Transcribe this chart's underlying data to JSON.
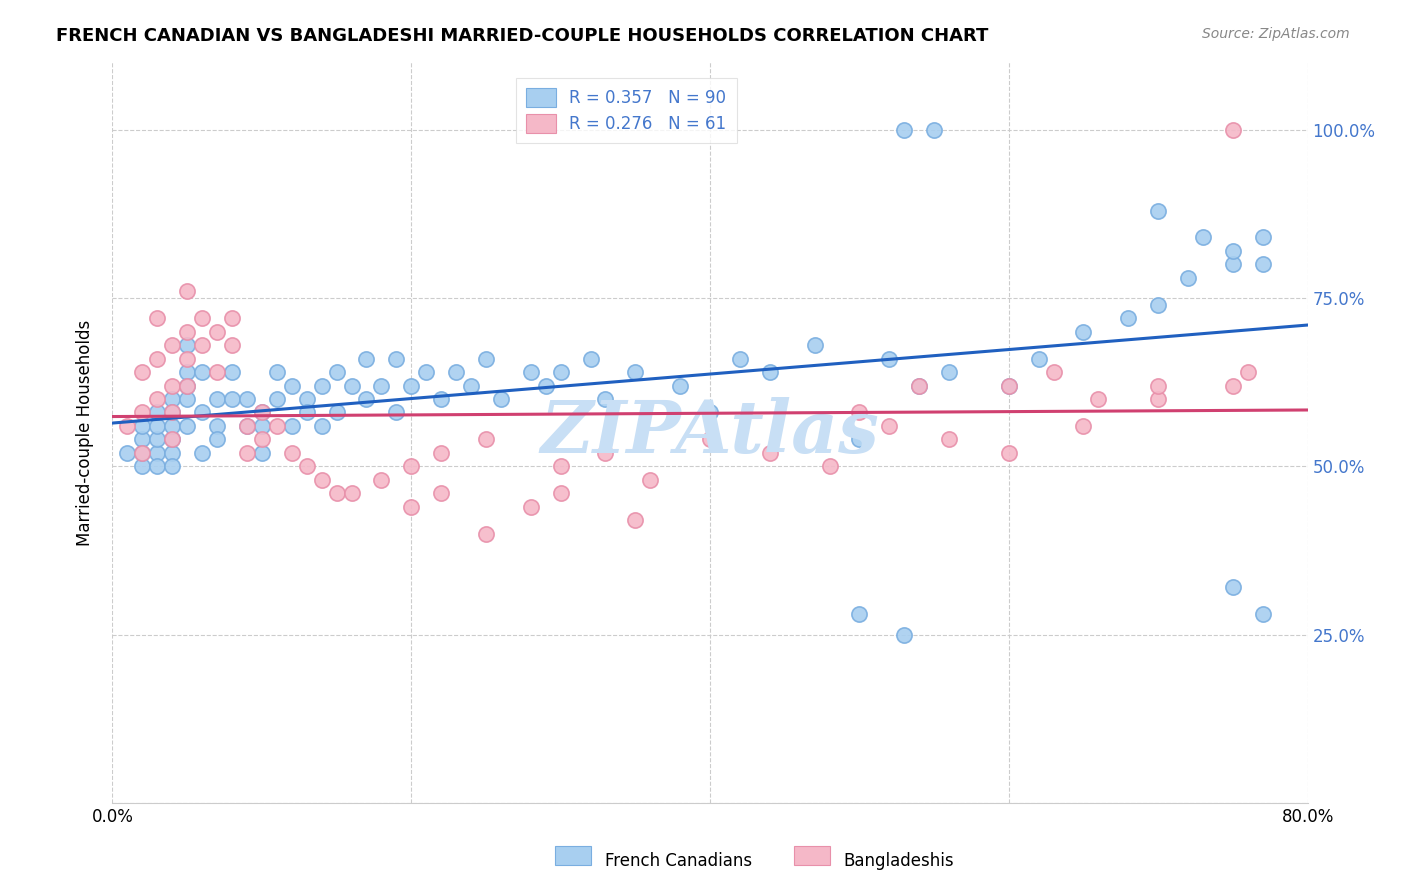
{
  "title": "FRENCH CANADIAN VS BANGLADESHI MARRIED-COUPLE HOUSEHOLDS CORRELATION CHART",
  "source": "Source: ZipAtlas.com",
  "ylabel": "Married-couple Households",
  "xlabel_french": "French Canadians",
  "xlabel_bangladeshi": "Bangladeshis",
  "xmin": 0.0,
  "xmax": 0.8,
  "ymin": 0.0,
  "ymax": 1.1,
  "yticks": [
    0.0,
    0.25,
    0.5,
    0.75,
    1.0
  ],
  "xticks": [
    0.0,
    0.2,
    0.4,
    0.6,
    0.8
  ],
  "french_R": 0.357,
  "french_N": 90,
  "bangladeshi_R": 0.276,
  "bangladeshi_N": 61,
  "french_color": "#a8cff0",
  "bangladeshi_color": "#f5b8c8",
  "french_edge_color": "#7aaee0",
  "bangladeshi_edge_color": "#e890aa",
  "french_line_color": "#2060c0",
  "bangladeshi_line_color": "#d04070",
  "watermark_color": "#c8dff5",
  "right_tick_color": "#4477cc",
  "title_fontsize": 13,
  "source_fontsize": 10,
  "axis_fontsize": 12,
  "legend_fontsize": 12,
  "french_x": [
    0.01,
    0.02,
    0.02,
    0.02,
    0.02,
    0.03,
    0.03,
    0.03,
    0.03,
    0.03,
    0.04,
    0.04,
    0.04,
    0.04,
    0.04,
    0.04,
    0.05,
    0.05,
    0.05,
    0.05,
    0.05,
    0.06,
    0.06,
    0.06,
    0.07,
    0.07,
    0.07,
    0.08,
    0.08,
    0.09,
    0.09,
    0.1,
    0.1,
    0.1,
    0.11,
    0.11,
    0.12,
    0.12,
    0.13,
    0.13,
    0.14,
    0.14,
    0.15,
    0.15,
    0.16,
    0.17,
    0.17,
    0.18,
    0.19,
    0.19,
    0.2,
    0.21,
    0.22,
    0.23,
    0.24,
    0.25,
    0.26,
    0.28,
    0.29,
    0.3,
    0.32,
    0.33,
    0.35,
    0.38,
    0.4,
    0.42,
    0.44,
    0.47,
    0.5,
    0.52,
    0.54,
    0.56,
    0.6,
    0.62,
    0.65,
    0.68,
    0.7,
    0.72,
    0.75,
    0.77,
    0.53,
    0.55,
    0.7,
    0.73,
    0.75,
    0.77,
    0.5,
    0.53,
    0.75,
    0.77
  ],
  "french_y": [
    0.52,
    0.5,
    0.54,
    0.52,
    0.56,
    0.52,
    0.54,
    0.5,
    0.56,
    0.58,
    0.52,
    0.54,
    0.5,
    0.56,
    0.6,
    0.58,
    0.56,
    0.6,
    0.64,
    0.68,
    0.62,
    0.64,
    0.52,
    0.58,
    0.56,
    0.6,
    0.54,
    0.6,
    0.64,
    0.56,
    0.6,
    0.58,
    0.52,
    0.56,
    0.64,
    0.6,
    0.62,
    0.56,
    0.6,
    0.58,
    0.62,
    0.56,
    0.64,
    0.58,
    0.62,
    0.6,
    0.66,
    0.62,
    0.58,
    0.66,
    0.62,
    0.64,
    0.6,
    0.64,
    0.62,
    0.66,
    0.6,
    0.64,
    0.62,
    0.64,
    0.66,
    0.6,
    0.64,
    0.62,
    0.58,
    0.66,
    0.64,
    0.68,
    0.54,
    0.66,
    0.62,
    0.64,
    0.62,
    0.66,
    0.7,
    0.72,
    0.74,
    0.78,
    0.8,
    0.84,
    1.0,
    1.0,
    0.88,
    0.84,
    0.82,
    0.8,
    0.28,
    0.25,
    0.32,
    0.28
  ],
  "bangladeshi_x": [
    0.01,
    0.02,
    0.02,
    0.02,
    0.03,
    0.03,
    0.03,
    0.04,
    0.04,
    0.04,
    0.04,
    0.05,
    0.05,
    0.05,
    0.05,
    0.06,
    0.06,
    0.07,
    0.07,
    0.08,
    0.08,
    0.09,
    0.09,
    0.1,
    0.1,
    0.11,
    0.12,
    0.13,
    0.14,
    0.15,
    0.16,
    0.18,
    0.2,
    0.22,
    0.25,
    0.28,
    0.3,
    0.33,
    0.36,
    0.4,
    0.44,
    0.48,
    0.52,
    0.56,
    0.6,
    0.65,
    0.7,
    0.75,
    0.5,
    0.54,
    0.6,
    0.63,
    0.66,
    0.7,
    0.75,
    0.2,
    0.22,
    0.25,
    0.3,
    0.35,
    0.76
  ],
  "bangladeshi_y": [
    0.56,
    0.52,
    0.58,
    0.64,
    0.6,
    0.66,
    0.72,
    0.68,
    0.62,
    0.58,
    0.54,
    0.66,
    0.7,
    0.62,
    0.76,
    0.68,
    0.72,
    0.7,
    0.64,
    0.72,
    0.68,
    0.56,
    0.52,
    0.58,
    0.54,
    0.56,
    0.52,
    0.5,
    0.48,
    0.46,
    0.46,
    0.48,
    0.5,
    0.52,
    0.54,
    0.44,
    0.5,
    0.52,
    0.48,
    0.54,
    0.52,
    0.5,
    0.56,
    0.54,
    0.52,
    0.56,
    0.6,
    0.62,
    0.58,
    0.62,
    0.62,
    0.64,
    0.6,
    0.62,
    1.0,
    0.44,
    0.46,
    0.4,
    0.46,
    0.42,
    0.64
  ]
}
